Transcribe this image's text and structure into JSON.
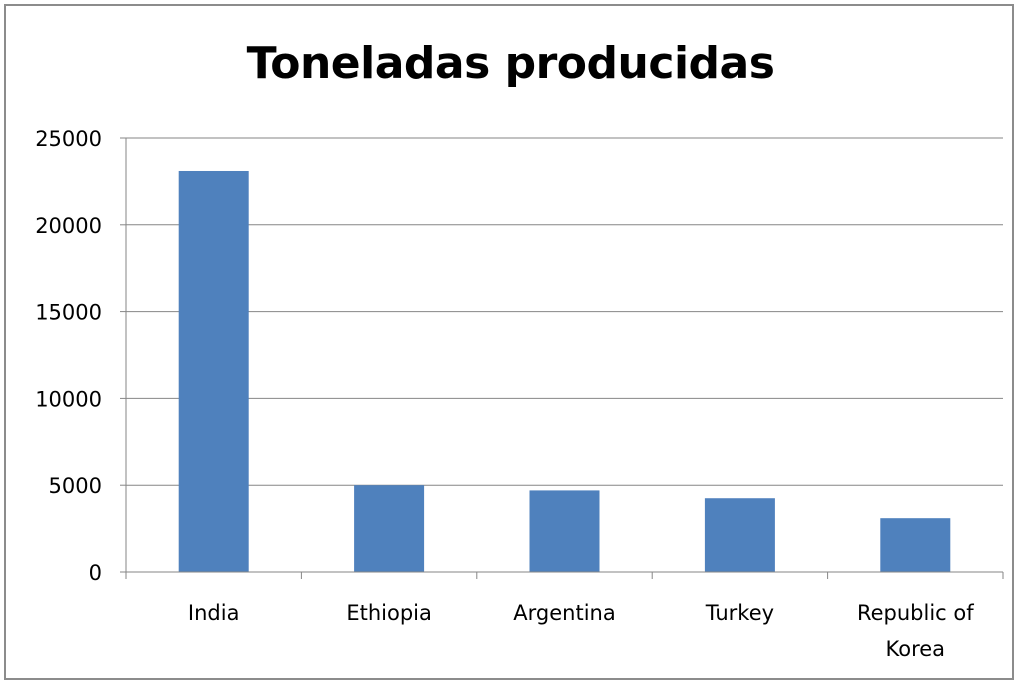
{
  "chart_data": {
    "type": "bar",
    "title": "Toneladas producidas",
    "xlabel": "",
    "ylabel": "",
    "categories": [
      "India",
      "Ethiopia",
      "Argentina",
      "Turkey",
      "Republic of Korea"
    ],
    "category_lines": [
      [
        "India"
      ],
      [
        "Ethiopia"
      ],
      [
        "Argentina"
      ],
      [
        "Turkey"
      ],
      [
        "Republic of",
        "Korea"
      ]
    ],
    "values": [
      23100,
      5000,
      4700,
      4250,
      3100
    ],
    "ylim": [
      0,
      25000
    ],
    "yticks": [
      0,
      5000,
      10000,
      15000,
      20000,
      25000
    ],
    "grid": true,
    "legend": "none",
    "bar_color": "#4f81bd",
    "grid_color": "#868686"
  }
}
